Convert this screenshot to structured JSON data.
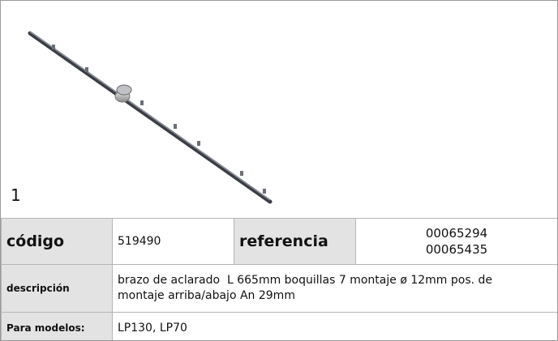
{
  "product": {
    "number": "1"
  },
  "table": {
    "code_label": "código",
    "code": "519490",
    "reference_label": "referencia",
    "references": [
      "00065294",
      "00065435"
    ],
    "description_label": "descripción",
    "description": "brazo de aclarado  L 665mm boquillas 7 montaje ø 12mm pos. de montaje arriba/abajo An 29mm",
    "models_label": "Para modelos:",
    "models": "LP130, LP70"
  }
}
